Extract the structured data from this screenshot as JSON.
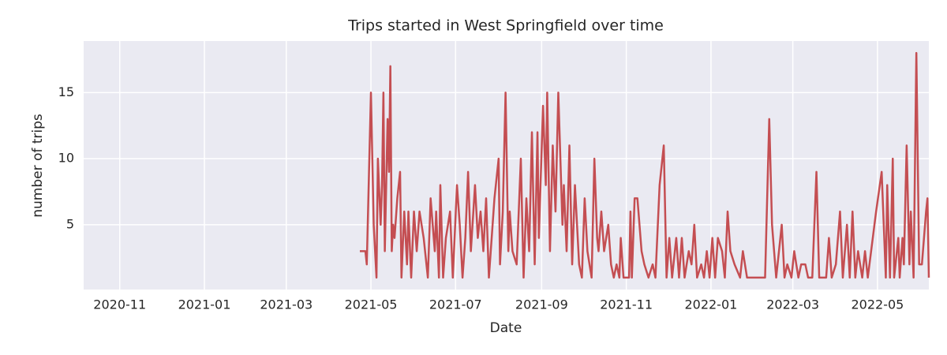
{
  "chart_data": {
    "type": "line",
    "title": "Trips started in West Springfield over time",
    "x_label": "Date",
    "y_label": "number of trips",
    "x": [
      18740,
      18744,
      18745,
      18748,
      18750,
      18752,
      18753,
      18755,
      18756,
      18757,
      18758,
      18760,
      18761,
      18762,
      18763,
      18764,
      18765,
      18767,
      18769,
      18770,
      18772,
      18774,
      18775,
      18777,
      18779,
      18781,
      18783,
      18786,
      18789,
      18791,
      18794,
      18795,
      18797,
      18798,
      18800,
      18802,
      18805,
      18807,
      18810,
      18812,
      18814,
      18816,
      18818,
      18820,
      18823,
      18825,
      18827,
      18829,
      18831,
      18833,
      18835,
      18837,
      18840,
      18841,
      18843,
      18845,
      18847,
      18848,
      18850,
      18853,
      18856,
      18858,
      18860,
      18862,
      18864,
      18866,
      18868,
      18869,
      18872,
      18874,
      18875,
      18877,
      18879,
      18881,
      18883,
      18886,
      18887,
      18889,
      18891,
      18893,
      18895,
      18898,
      18900,
      18902,
      18904,
      18907,
      18909,
      18911,
      18912,
      18914,
      18916,
      18919,
      18921,
      18923,
      18925,
      18927,
      18928,
      18930,
      18934,
      18935,
      18936,
      18938,
      18940,
      18943,
      18945,
      18948,
      18951,
      18953,
      18956,
      18959,
      18961,
      18963,
      18965,
      18968,
      18970,
      18972,
      18974,
      18977,
      18979,
      18981,
      18983,
      18986,
      18988,
      18990,
      18992,
      18994,
      18996,
      18998,
      19001,
      19003,
      19005,
      19007,
      19010,
      19014,
      19016,
      19019,
      19032,
      19035,
      19037,
      19040,
      19044,
      19046,
      19048,
      19051,
      19053,
      19056,
      19058,
      19061,
      19063,
      19066,
      19069,
      19071,
      19076,
      19078,
      19080,
      19083,
      19086,
      19088,
      19091,
      19093,
      19095,
      19097,
      19099,
      19102,
      19104,
      19106,
      19112,
      19116,
      19119,
      19120,
      19122,
      19124,
      19125,
      19128,
      19129,
      19131,
      19132,
      19134,
      19136,
      19137,
      19139,
      19141,
      19143,
      19145,
      19148,
      19149,
      19150
    ],
    "series": [
      {
        "color": "#c44e52",
        "values": [
          3,
          3,
          2,
          15,
          5,
          1,
          10,
          5,
          8,
          15,
          3,
          13,
          9,
          17,
          3,
          5,
          4,
          7,
          9,
          1,
          6,
          2,
          6,
          1,
          6,
          3,
          6,
          4,
          1,
          7,
          3,
          6,
          1,
          8,
          1,
          4,
          6,
          1,
          8,
          5,
          1,
          4,
          9,
          3,
          8,
          4,
          6,
          3,
          7,
          1,
          4,
          7,
          10,
          2,
          6,
          15,
          3,
          6,
          3,
          2,
          10,
          1,
          7,
          3,
          12,
          2,
          12,
          4,
          14,
          8,
          15,
          3,
          11,
          6,
          15,
          5,
          8,
          3,
          11,
          2,
          8,
          2,
          1,
          7,
          3,
          1,
          10,
          4,
          3,
          6,
          3,
          5,
          2,
          1,
          2,
          1,
          4,
          1,
          1,
          6,
          1,
          7,
          7,
          3,
          2,
          1,
          2,
          1,
          8,
          11,
          1,
          4,
          1,
          4,
          1,
          4,
          1,
          3,
          2,
          5,
          1,
          2,
          1,
          3,
          1,
          4,
          1,
          4,
          3,
          1,
          6,
          3,
          2,
          1,
          3,
          1,
          1,
          13,
          5,
          1,
          5,
          1,
          2,
          1,
          3,
          1,
          2,
          2,
          1,
          1,
          9,
          1,
          1,
          4,
          1,
          2,
          6,
          1,
          5,
          1,
          6,
          1,
          3,
          1,
          3,
          1,
          6,
          9,
          1,
          8,
          1,
          10,
          1,
          4,
          1,
          4,
          2,
          11,
          2,
          6,
          1,
          18,
          2,
          2,
          6,
          7,
          1
        ]
      }
    ],
    "xlim": [
      18541,
      19150
    ],
    "xticks": [
      {
        "value": 18567,
        "label": "2020-11"
      },
      {
        "value": 18628,
        "label": "2021-01"
      },
      {
        "value": 18687,
        "label": "2021-03"
      },
      {
        "value": 18748,
        "label": "2021-05"
      },
      {
        "value": 18809,
        "label": "2021-07"
      },
      {
        "value": 18871,
        "label": "2021-09"
      },
      {
        "value": 18932,
        "label": "2021-11"
      },
      {
        "value": 18993,
        "label": "2022-01"
      },
      {
        "value": 19052,
        "label": "2022-03"
      },
      {
        "value": 19113,
        "label": "2022-05"
      }
    ],
    "ylim": [
      0.1,
      18.9
    ],
    "yticks": [
      5,
      10,
      15
    ],
    "grid": true
  }
}
